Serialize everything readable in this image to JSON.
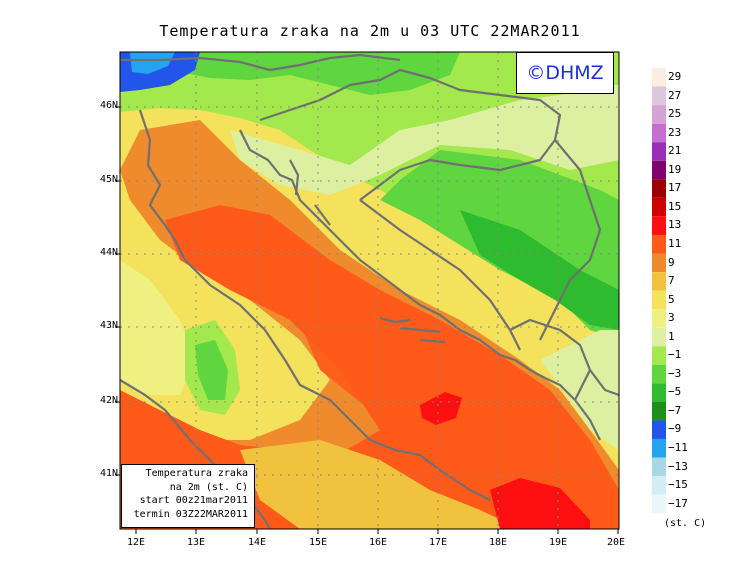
{
  "title": "Temperatura zraka na 2m u 03 UTC 22MAR2011",
  "logo": "©DHMZ",
  "info_box": {
    "line1": "Temperatura zraka",
    "line2": "na 2m (st. C)",
    "line3": "start 00z21mar2011",
    "line4": "termin 03Z22MAR2011"
  },
  "y_ticks": [
    "46N",
    "45N",
    "44N",
    "43N",
    "42N",
    "41N"
  ],
  "x_ticks": [
    "12E",
    "13E",
    "14E",
    "15E",
    "16E",
    "17E",
    "18E",
    "19E",
    "20E"
  ],
  "legend": {
    "unit": "(st. C)",
    "labels": [
      "29",
      "27",
      "25",
      "23",
      "21",
      "19",
      "17",
      "15",
      "13",
      "11",
      "9",
      "7",
      "5",
      "3",
      "1",
      "−1",
      "−3",
      "−5",
      "−7",
      "−9",
      "−11",
      "−13",
      "−15",
      "−17"
    ],
    "colors": [
      "#fbeee0",
      "#dec6dc",
      "#d7a2d8",
      "#c76fd0",
      "#9a2fb7",
      "#800070",
      "#9c0000",
      "#cf0000",
      "#ff1010",
      "#ff5a1a",
      "#ef8a2d",
      "#f0c23e",
      "#f4e15c",
      "#eff082",
      "#ddf0a2",
      "#a3e84c",
      "#5fd53f",
      "#2fbb2f",
      "#1c8f1c",
      "#2255ea",
      "#25a3ee",
      "#a8d7e6",
      "#d2edf4",
      "#eaf8fb"
    ]
  }
}
